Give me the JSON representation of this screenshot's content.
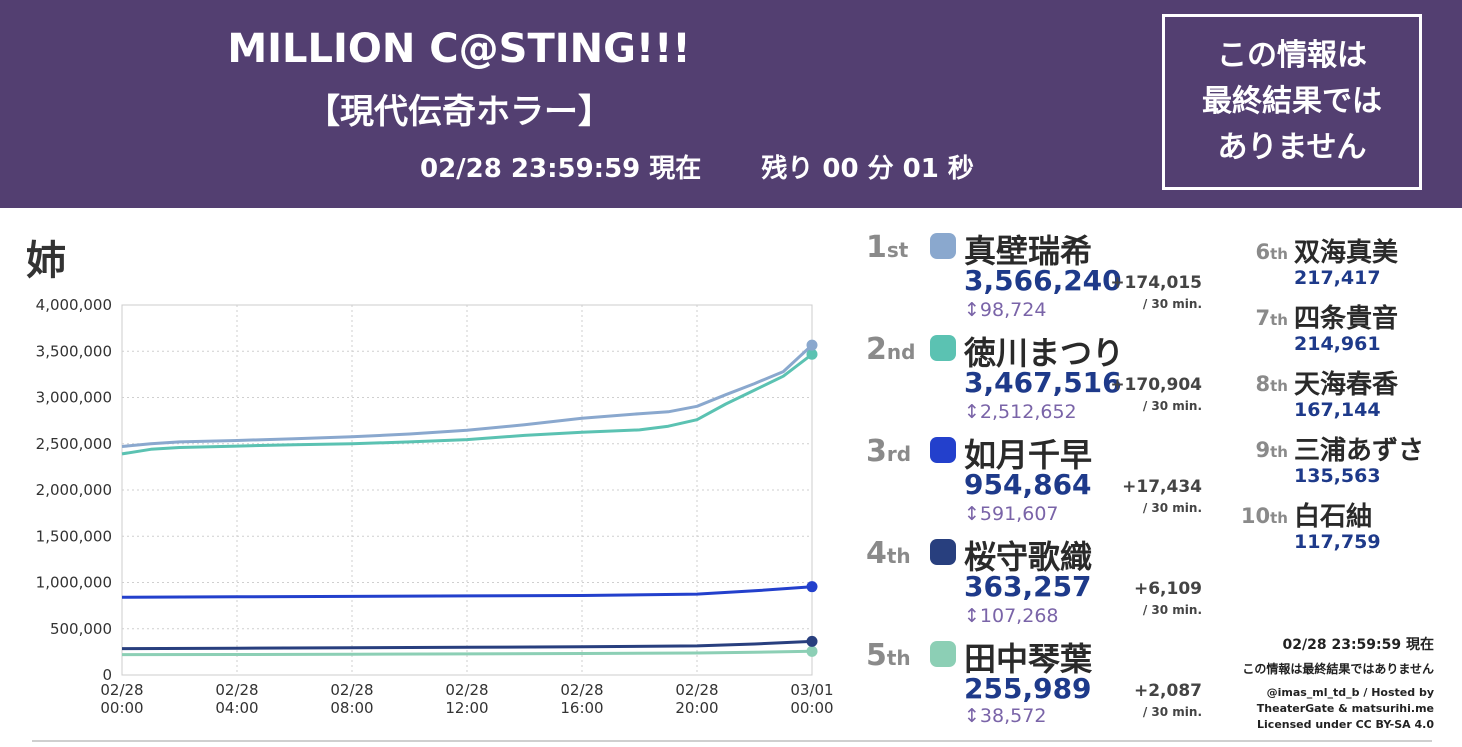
{
  "header": {
    "title": "MILLION C@STING!!!",
    "subtitle": "【現代伝奇ホラー】",
    "timestamp": "02/28 23:59:59 現在",
    "remaining": "残り 00 分 01 秒",
    "notice_lines": [
      "この情報は",
      "最終結果では",
      "ありません"
    ]
  },
  "chart_title": "姉",
  "rankings": [
    {
      "rank": "1",
      "suffix": "st",
      "name": "真壁瑞希",
      "score": "3,566,240",
      "delta": "+174,015",
      "per": "/ 30 min.",
      "gap": "↕98,724",
      "color": "#8aa8ce"
    },
    {
      "rank": "2",
      "suffix": "nd",
      "name": "徳川まつり",
      "score": "3,467,516",
      "delta": "+170,904",
      "per": "/ 30 min.",
      "gap": "↕2,512,652",
      "color": "#5bc2b2"
    },
    {
      "rank": "3",
      "suffix": "rd",
      "name": "如月千早",
      "score": "954,864",
      "delta": "+17,434",
      "per": "/ 30 min.",
      "gap": "↕591,607",
      "color": "#2340cc"
    },
    {
      "rank": "4",
      "suffix": "th",
      "name": "桜守歌織",
      "score": "363,257",
      "delta": "+6,109",
      "per": "/ 30 min.",
      "gap": "↕107,268",
      "color": "#283f7e"
    },
    {
      "rank": "5",
      "suffix": "th",
      "name": "田中琴葉",
      "score": "255,989",
      "delta": "+2,087",
      "per": "/ 30 min.",
      "gap": "↕38,572",
      "color": "#8ccfb5"
    }
  ],
  "others": [
    {
      "rank": "6",
      "suffix": "th",
      "name": "双海真美",
      "score": "217,417"
    },
    {
      "rank": "7",
      "suffix": "th",
      "name": "四条貴音",
      "score": "214,961"
    },
    {
      "rank": "8",
      "suffix": "th",
      "name": "天海春香",
      "score": "167,144"
    },
    {
      "rank": "9",
      "suffix": "th",
      "name": "三浦あずさ",
      "score": "135,563"
    },
    {
      "rank": "10",
      "suffix": "th",
      "name": "白石紬",
      "score": "117,759"
    }
  ],
  "footer": {
    "timestamp": "02/28 23:59:59 現在",
    "note": "この情報は最終結果ではありません",
    "credit1": "@imas_ml_td_b / Hosted by",
    "credit2": "TheaterGate & matsurihi.me",
    "credit3": "Licensed under CC BY-SA 4.0"
  },
  "chart_data": {
    "type": "line",
    "title": "姉",
    "xlabel": "",
    "ylabel": "",
    "x_ticks": [
      "02/28\n00:00",
      "02/28\n04:00",
      "02/28\n08:00",
      "02/28\n12:00",
      "02/28\n16:00",
      "02/28\n20:00",
      "03/01\n00:00"
    ],
    "xlim": [
      0,
      24
    ],
    "ylim": [
      0,
      4000000
    ],
    "y_ticks": [
      "0",
      "500,000",
      "1,000,000",
      "1,500,000",
      "2,000,000",
      "2,500,000",
      "3,000,000",
      "3,500,000",
      "4,000,000"
    ],
    "grid": true,
    "legend": "none",
    "series": [
      {
        "name": "真壁瑞希",
        "color": "#8aa8ce",
        "x": [
          0,
          1,
          2,
          4,
          6,
          8,
          10,
          12,
          14,
          16,
          18,
          19,
          20,
          21,
          22,
          23,
          24
        ],
        "values": [
          2470000,
          2500000,
          2520000,
          2535000,
          2555000,
          2575000,
          2605000,
          2645000,
          2705000,
          2775000,
          2825000,
          2845000,
          2905000,
          3030000,
          3150000,
          3280000,
          3566240
        ]
      },
      {
        "name": "徳川まつり",
        "color": "#5bc2b2",
        "x": [
          0,
          1,
          2,
          4,
          6,
          8,
          10,
          12,
          14,
          16,
          18,
          19,
          20,
          21,
          22,
          23,
          24
        ],
        "values": [
          2390000,
          2440000,
          2460000,
          2475000,
          2490000,
          2500000,
          2520000,
          2545000,
          2590000,
          2625000,
          2650000,
          2690000,
          2760000,
          2930000,
          3080000,
          3230000,
          3467516
        ]
      },
      {
        "name": "如月千早",
        "color": "#2340cc",
        "x": [
          0,
          4,
          8,
          12,
          16,
          20,
          22,
          24
        ],
        "values": [
          840000,
          845000,
          850000,
          855000,
          860000,
          875000,
          910000,
          954864
        ]
      },
      {
        "name": "桜守歌織",
        "color": "#283f7e",
        "x": [
          0,
          4,
          8,
          12,
          16,
          20,
          22,
          24
        ],
        "values": [
          285000,
          290000,
          295000,
          300000,
          305000,
          315000,
          335000,
          363257
        ]
      },
      {
        "name": "田中琴葉",
        "color": "#8ccfb5",
        "x": [
          0,
          4,
          8,
          12,
          16,
          20,
          22,
          24
        ],
        "values": [
          220000,
          222000,
          225000,
          228000,
          232000,
          238000,
          245000,
          255989
        ]
      }
    ]
  }
}
